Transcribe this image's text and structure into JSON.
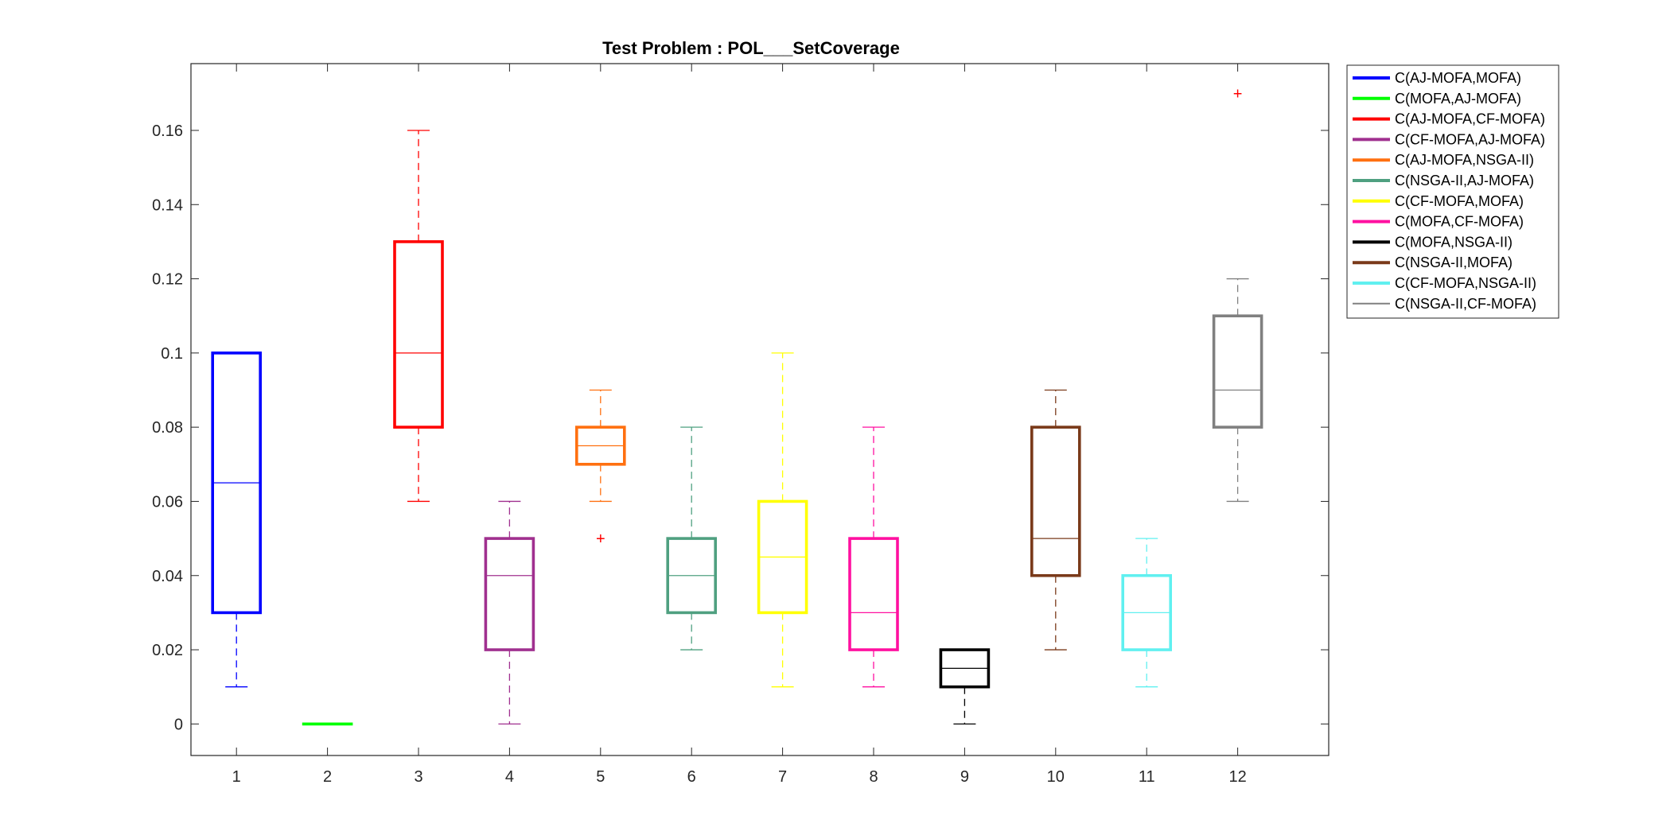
{
  "chart_data": {
    "type": "box",
    "title": "Test Problem : POL___SetCoverage",
    "xlabel": "",
    "ylabel": "",
    "categories": [
      "1",
      "2",
      "3",
      "4",
      "5",
      "6",
      "7",
      "8",
      "9",
      "10",
      "11",
      "12"
    ],
    "ylim": [
      -0.0085,
      0.178
    ],
    "yticks": [
      0,
      0.02,
      0.04,
      0.06,
      0.08,
      0.1,
      0.12,
      0.14,
      0.16
    ],
    "ytick_labels": [
      "0",
      "0.02",
      "0.04",
      "0.06",
      "0.08",
      "0.1",
      "0.12",
      "0.14",
      "0.16"
    ],
    "grid": false,
    "legend_position": "outside-right",
    "series": [
      {
        "name": "C(AJ-MOFA,MOFA)",
        "color": "#0000ff",
        "whisker_low": 0.01,
        "q1": 0.03,
        "median": 0.065,
        "q3": 0.1,
        "whisker_high": 0.1,
        "outliers": []
      },
      {
        "name": "C(MOFA,AJ-MOFA)",
        "color": "#00ff00",
        "whisker_low": 0.0,
        "q1": 0.0,
        "median": 0.0,
        "q3": 0.0,
        "whisker_high": 0.0,
        "outliers": []
      },
      {
        "name": "C(AJ-MOFA,CF-MOFA)",
        "color": "#ff0000",
        "whisker_low": 0.06,
        "q1": 0.08,
        "median": 0.1,
        "q3": 0.13,
        "whisker_high": 0.16,
        "outliers": []
      },
      {
        "name": "C(CF-MOFA,AJ-MOFA)",
        "color": "#a0308f",
        "whisker_low": 0.0,
        "q1": 0.02,
        "median": 0.04,
        "q3": 0.05,
        "whisker_high": 0.06,
        "outliers": []
      },
      {
        "name": "C(AJ-MOFA,NSGA-II)",
        "color": "#ff7010",
        "whisker_low": 0.06,
        "q1": 0.07,
        "median": 0.075,
        "q3": 0.08,
        "whisker_high": 0.09,
        "outliers": [
          0.05
        ]
      },
      {
        "name": "C(NSGA-II,AJ-MOFA)",
        "color": "#4fa080",
        "whisker_low": 0.02,
        "q1": 0.03,
        "median": 0.04,
        "q3": 0.05,
        "whisker_high": 0.08,
        "outliers": []
      },
      {
        "name": "C(CF-MOFA,MOFA)",
        "color": "#ffff00",
        "whisker_low": 0.01,
        "q1": 0.03,
        "median": 0.045,
        "q3": 0.06,
        "whisker_high": 0.1,
        "outliers": []
      },
      {
        "name": "C(MOFA,CF-MOFA)",
        "color": "#ff10a0",
        "whisker_low": 0.01,
        "q1": 0.02,
        "median": 0.03,
        "q3": 0.05,
        "whisker_high": 0.08,
        "outliers": []
      },
      {
        "name": "C(MOFA,NSGA-II)",
        "color": "#000000",
        "whisker_low": 0.0,
        "q1": 0.01,
        "median": 0.015,
        "q3": 0.02,
        "whisker_high": 0.02,
        "outliers": []
      },
      {
        "name": "C(NSGA-II,MOFA)",
        "color": "#7a3a1a",
        "whisker_low": 0.02,
        "q1": 0.04,
        "median": 0.05,
        "q3": 0.08,
        "whisker_high": 0.09,
        "outliers": []
      },
      {
        "name": "C(CF-MOFA,NSGA-II)",
        "color": "#60f0f0",
        "whisker_low": 0.01,
        "q1": 0.02,
        "median": 0.03,
        "q3": 0.04,
        "whisker_high": 0.05,
        "outliers": []
      },
      {
        "name": "C(NSGA-II,CF-MOFA)",
        "color": "#808080",
        "whisker_low": 0.06,
        "q1": 0.08,
        "median": 0.09,
        "q3": 0.11,
        "whisker_high": 0.12,
        "outliers": [
          0.17
        ]
      }
    ],
    "outlier_color": "#ff0000"
  }
}
